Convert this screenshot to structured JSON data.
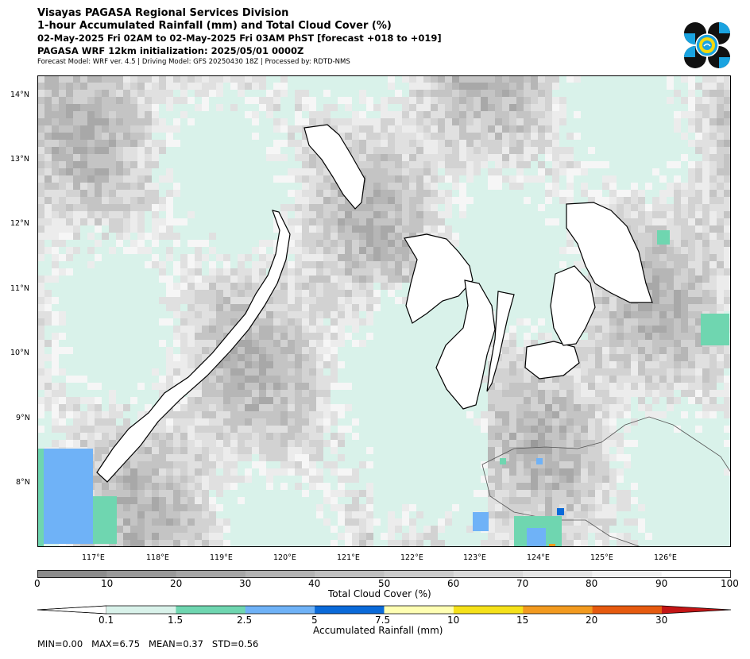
{
  "header": {
    "title": "Visayas PAGASA Regional Services Division",
    "subtitle": "1-hour Accumulated Rainfall (mm) and Total Cloud Cover (%)",
    "valid_time": "02-May-2025 Fri 02AM to 02-May-2025 Fri 03AM PhST [forecast +018 to +019]",
    "init_time": "PAGASA WRF 12km initialization: 2025/05/01 0000Z",
    "model_info": "Forecast Model: WRF ver. 4.5 | Driving Model: GFS 20250430 18Z | Processed by: RDTD-NMS"
  },
  "logo": {
    "icon": "pagasa-seal-icon"
  },
  "map": {
    "lat_labels": [
      "14°N",
      "13°N",
      "12°N",
      "11°N",
      "10°N",
      "9°N",
      "8°N"
    ],
    "lon_labels": [
      "117°E",
      "118°E",
      "119°E",
      "120°E",
      "121°E",
      "122°E",
      "123°E",
      "124°E",
      "125°E",
      "126°E"
    ],
    "land_color": "#000000",
    "background_color": "#d9f2ea"
  },
  "cloud_colorbar": {
    "label": "Total Cloud Cover (%)",
    "ticks": [
      "0",
      "10",
      "20",
      "30",
      "40",
      "50",
      "60",
      "70",
      "80",
      "90",
      "100"
    ],
    "colors": [
      "#8c8c8c",
      "#999999",
      "#a6a6a6",
      "#b3b3b3",
      "#c0c0c0",
      "#cccccc",
      "#d9d9d9",
      "#e5e5e5",
      "#f2f2f2",
      "#ffffff"
    ]
  },
  "rain_colorbar": {
    "label": "Accumulated Rainfall (mm)",
    "ticks": [
      "0.1",
      "1.5",
      "2.5",
      "5",
      "7.5",
      "10",
      "15",
      "20",
      "30"
    ],
    "colors": [
      "#ffffff",
      "#d9f2ea",
      "#6fd6b0",
      "#6fb2f7",
      "#0a6ad9",
      "#ffffb3",
      "#f5e11a",
      "#f29a1f",
      "#e65a0f",
      "#c41515"
    ]
  },
  "stats": {
    "min": "MIN=0.00",
    "max": "MAX=6.75",
    "mean": "MEAN=0.37",
    "std": "STD=0.56"
  }
}
